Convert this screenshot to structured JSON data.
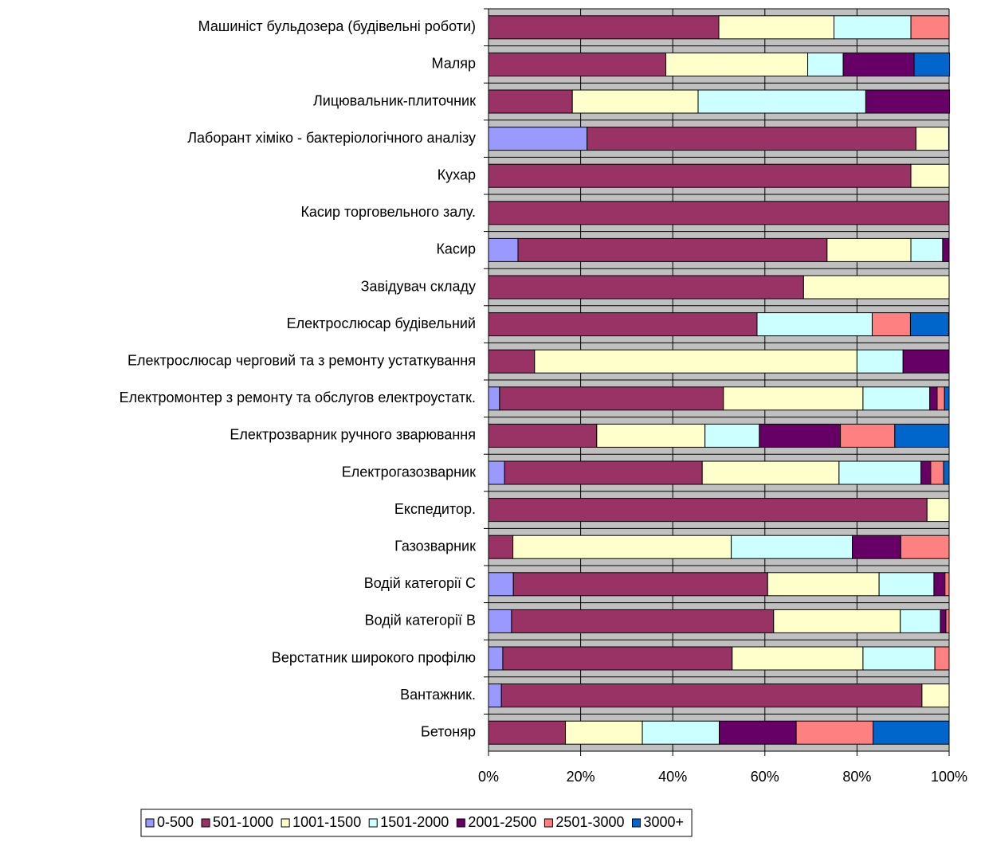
{
  "chart_data": {
    "type": "stacked_barh",
    "categories": [
      "Машиніст бульдозера (будівельні роботи)",
      "Маляр",
      "Лицювальник-плиточник",
      "Лаборант хіміко - бактеріологічного аналізу",
      "Кухар",
      "Касир торговельного залу.",
      "Касир",
      "Завідувач складу",
      "Електрослюсар будівельний",
      "Електрослюсар черговий та з ремонту устаткування",
      "Електромонтер з ремонту та обслугов електроустатк.",
      "Електрозварник ручного зварювання",
      "Електрогазозварник",
      "Експедитор.",
      "Газозварник",
      "Водій категорії С",
      "Водій категорії В",
      "Верстатник широкого профілю",
      "Вантажник.",
      "Бетоняр"
    ],
    "series": [
      {
        "name": "0-500",
        "color": "#9999ff",
        "values": [
          0,
          0,
          0,
          21.4,
          0,
          0,
          6.4,
          0,
          0,
          0,
          2.4,
          0,
          3.5,
          0,
          0,
          5.4,
          5.0,
          3.1,
          2.8,
          0
        ]
      },
      {
        "name": "501-1000",
        "color": "#993366",
        "values": [
          50,
          38.5,
          18.2,
          71.4,
          91.7,
          100,
          67.1,
          68.4,
          58.3,
          10,
          48.6,
          23.5,
          42.9,
          95.2,
          5.3,
          55.2,
          56.9,
          49.8,
          91.3,
          16.7
        ]
      },
      {
        "name": "1001-1500",
        "color": "#ffffcc",
        "values": [
          25,
          30.8,
          27.3,
          7.1,
          8.3,
          0,
          18.2,
          31.6,
          0,
          70,
          30.3,
          23.5,
          29.7,
          4.8,
          47.4,
          24.2,
          27.5,
          28.4,
          5.9,
          16.7
        ]
      },
      {
        "name": "1501-2000",
        "color": "#ccffff",
        "values": [
          16.7,
          7.7,
          36.4,
          0,
          0,
          0,
          6.9,
          0,
          25,
          10,
          14.5,
          11.8,
          17.8,
          0,
          26.3,
          11.9,
          8.7,
          15.6,
          0,
          16.7
        ]
      },
      {
        "name": "2001-2500",
        "color": "#660066",
        "values": [
          0,
          15.4,
          18.2,
          0,
          0,
          0,
          1.4,
          0,
          0,
          10,
          1.6,
          17.6,
          2.1,
          0,
          10.5,
          2.4,
          1.2,
          0,
          0,
          16.7
        ]
      },
      {
        "name": "2501-3000",
        "color": "#ff8080",
        "values": [
          8.3,
          0,
          0,
          0,
          0,
          0,
          0,
          0,
          8.3,
          0,
          1.6,
          11.8,
          2.8,
          0,
          10.5,
          0.9,
          0.7,
          3.1,
          0,
          16.7
        ]
      },
      {
        "name": "3000+",
        "color": "#0066cc",
        "values": [
          0,
          7.7,
          0,
          0,
          0,
          0,
          0,
          0,
          8.3,
          0,
          1.0,
          11.8,
          1.2,
          0,
          0,
          0,
          0,
          0,
          0,
          16.5
        ]
      }
    ],
    "xlim": [
      0,
      100
    ],
    "xticks": [
      {
        "value": 0,
        "label": "0%"
      },
      {
        "value": 20,
        "label": "20%"
      },
      {
        "value": 40,
        "label": "40%"
      },
      {
        "value": 60,
        "label": "60%"
      },
      {
        "value": 80,
        "label": "80%"
      },
      {
        "value": 100,
        "label": "100%"
      }
    ],
    "grid": true,
    "plot_background": "#c0c0c0",
    "legend": "bottom"
  }
}
